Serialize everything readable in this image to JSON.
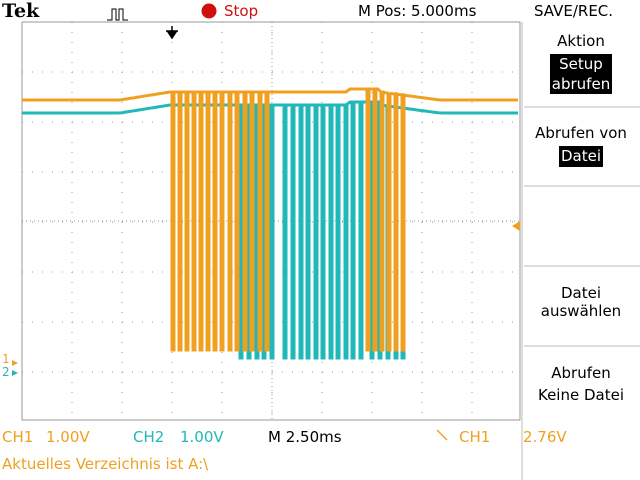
{
  "header": {
    "brand": "Tek",
    "status": "Stop",
    "position": "M Pos: 5.000ms",
    "menu_title": "SAVE/REC."
  },
  "menu": {
    "items": [
      {
        "label": [
          "Aktion"
        ],
        "button": [
          "Setup",
          "abrufen"
        ]
      },
      {
        "label": [
          "Abrufen von"
        ],
        "button": [
          "Datei"
        ]
      },
      {
        "label": [
          "Datei",
          "auswählen"
        ]
      },
      {
        "label": [
          "Abrufen",
          "Keine Datei"
        ]
      }
    ]
  },
  "markers": {
    "ch1": "1",
    "ch2": "2"
  },
  "footer": {
    "ch1_label": "CH1",
    "ch1_scale": "1.00V",
    "ch2_label": "CH2",
    "ch2_scale": "1.00V",
    "timebase": "M 2.50ms",
    "trigger_source": "CH1",
    "trigger_level": "2.76V",
    "directory": "Aktuelles Verzeichnis ist A:\\"
  }
}
